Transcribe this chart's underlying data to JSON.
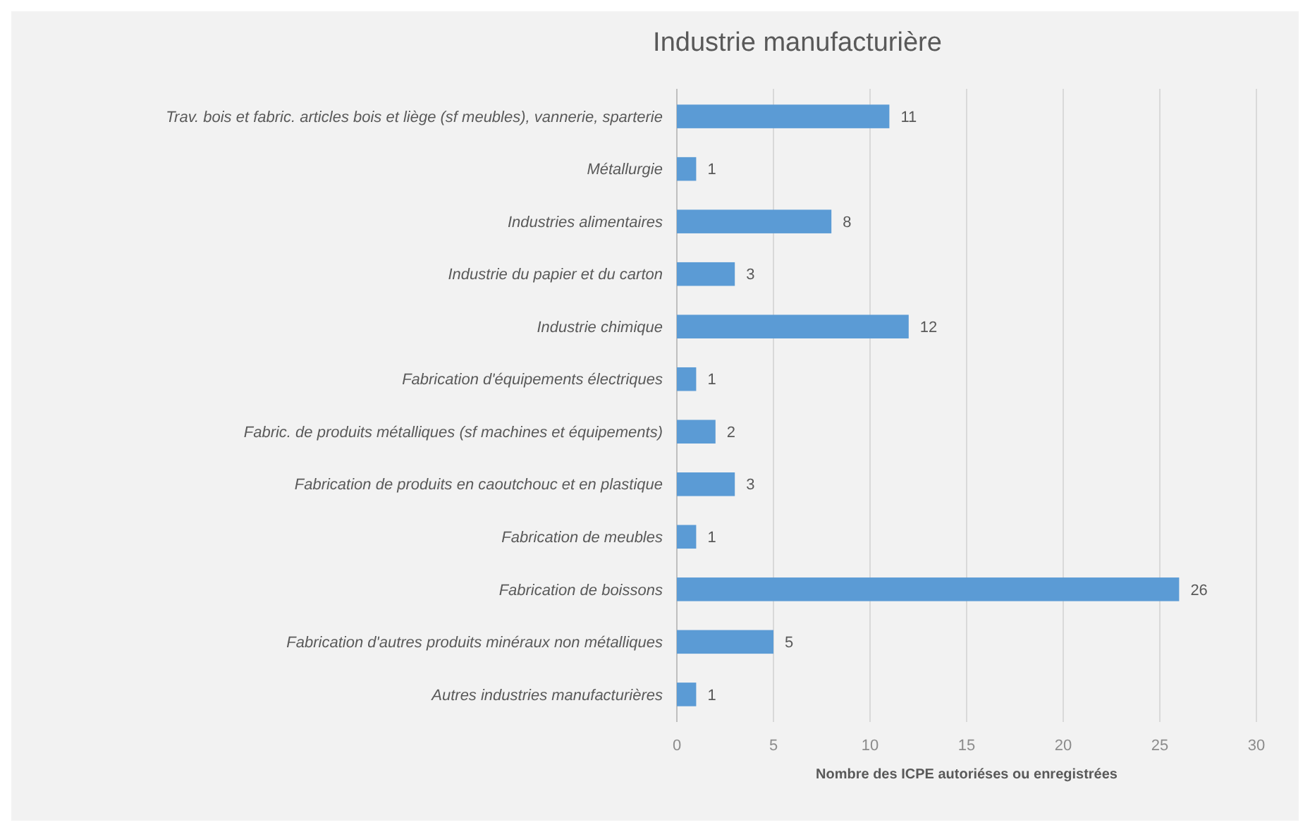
{
  "chart_data": {
    "type": "bar",
    "orientation": "horizontal",
    "title": "Industrie manufacturière",
    "xlabel": "Nombre des ICPE autoriéses ou enregistrées",
    "categories": [
      "Trav. bois et fabric. articles bois et liège (sf meubles), vannerie, sparterie",
      "Métallurgie",
      "Industries alimentaires",
      "Industrie du papier et du carton",
      "Industrie chimique",
      "Fabrication d'équipements électriques",
      "Fabric. de produits métalliques (sf machines et équipements)",
      "Fabrication de produits en caoutchouc et en plastique",
      "Fabrication de meubles",
      "Fabrication de boissons",
      "Fabrication d'autres produits minéraux non métalliques",
      "Autres industries manufacturières"
    ],
    "values": [
      11,
      1,
      8,
      3,
      12,
      1,
      2,
      3,
      1,
      26,
      5,
      1
    ],
    "color": "#5b9bd5",
    "xlim": [
      0,
      30
    ],
    "xticks": [
      0,
      5,
      10,
      15,
      20,
      25,
      30
    ],
    "grid": "x",
    "data_labels": true
  }
}
